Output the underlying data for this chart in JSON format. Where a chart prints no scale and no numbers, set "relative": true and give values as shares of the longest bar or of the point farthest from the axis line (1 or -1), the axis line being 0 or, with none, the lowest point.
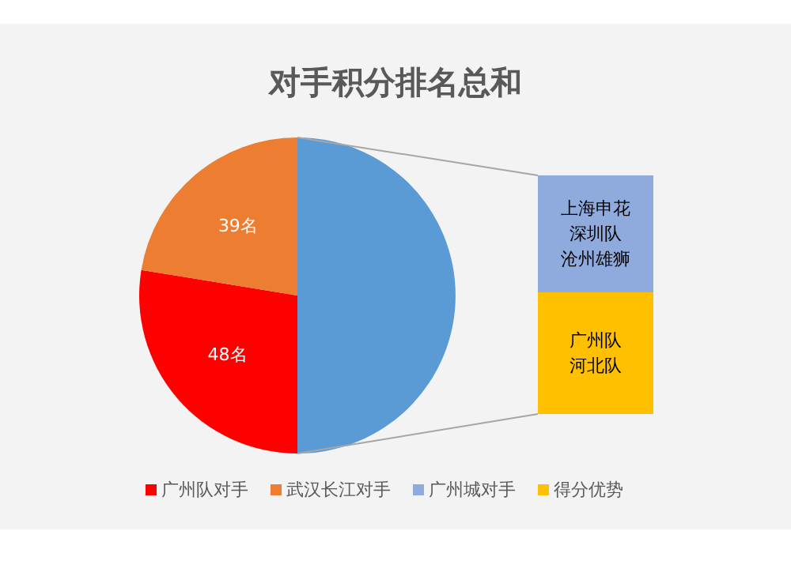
{
  "chart_data": [
    {
      "type": "pie",
      "title": "对手积分排名总和",
      "categories": [
        "广州队对手",
        "武汉长江对手",
        null
      ],
      "values": [
        48,
        39,
        87
      ],
      "colors": [
        "#ff0000",
        "#ed7d31",
        "#5b9bd5"
      ],
      "value_labels": [
        "48名",
        "39名",
        null
      ],
      "legend": "bottom"
    },
    {
      "type": "bar",
      "stacked": true,
      "relative": true,
      "categories": [
        null
      ],
      "legend": "bottom",
      "series": [
        {
          "name": "得分优势",
          "color": "#ffc000",
          "values": [
            0.51
          ]
        },
        {
          "name": "广州城对手",
          "color": "#8faadc",
          "values": [
            0.49
          ]
        }
      ],
      "annotations": [
        "上海申花",
        "深圳队",
        "沧州雄狮",
        "广州队",
        "河北队"
      ]
    }
  ]
}
